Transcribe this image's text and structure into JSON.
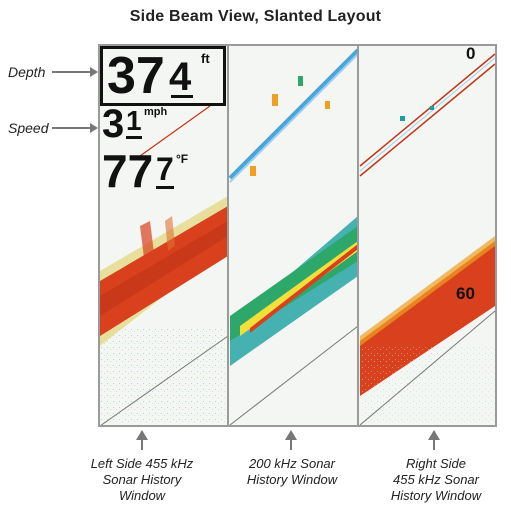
{
  "title": "Side Beam View, Slanted Layout",
  "labels": {
    "depth": "Depth",
    "speed": "Speed"
  },
  "readouts": {
    "depth_major": "37",
    "depth_minor": "4",
    "depth_unit": "ft",
    "speed_major": "3",
    "speed_minor": "1",
    "speed_unit": "mph",
    "temp_major": "77",
    "temp_minor": "7",
    "temp_unit": "°F"
  },
  "scale": {
    "top": "0",
    "bottom": "60"
  },
  "captions": {
    "left": [
      "Left Side 455 kHz",
      "Sonar History",
      "Window"
    ],
    "center": [
      "200 kHz Sonar",
      "History Window"
    ],
    "right": [
      "Right Side",
      "455 kHz Sonar",
      "History Window"
    ]
  },
  "colors": {
    "sonar_red": "#d9401e",
    "sonar_orange": "#f0a020",
    "sonar_yellow": "#f2e03a",
    "sonar_green": "#2ea86a",
    "sonar_teal": "#1aa0a0",
    "sonar_blue": "#4aa6d8",
    "background": "#f4f6f4"
  }
}
